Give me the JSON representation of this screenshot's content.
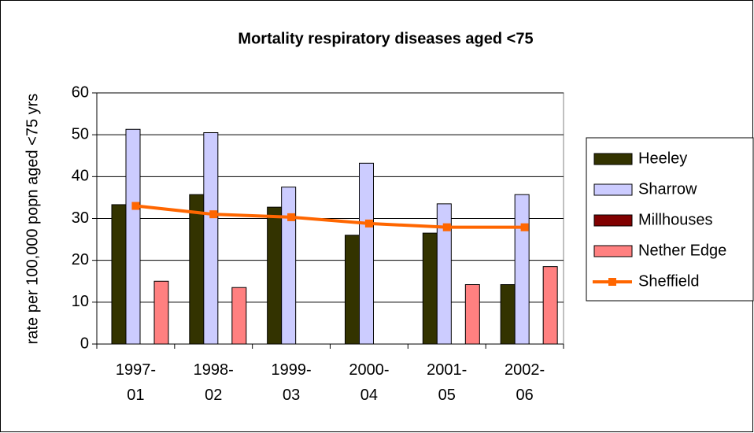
{
  "chart_data": {
    "type": "bar",
    "title": "Mortality respiratory diseases aged <75",
    "y_label": "rate per 100,000 popn aged <75 yrs",
    "categories": [
      "1997-01",
      "1998-02",
      "1999-03",
      "2000-04",
      "2001-05",
      "2002-06"
    ],
    "series": [
      {
        "name": "Heeley",
        "color": "#333300",
        "type": "bar",
        "values": [
          33.3,
          35.7,
          32.7,
          26,
          26.5,
          14.2
        ]
      },
      {
        "name": "Sharrow",
        "color": "#ccccff",
        "type": "bar",
        "values": [
          51.3,
          50.5,
          37.5,
          43.2,
          33.5,
          35.7
        ]
      },
      {
        "name": "Millhouses",
        "color": "#800000",
        "type": "bar",
        "values": [
          null,
          null,
          null,
          null,
          null,
          null
        ]
      },
      {
        "name": "Nether Edge",
        "color": "#ff8080",
        "type": "bar",
        "values": [
          15,
          13.5,
          null,
          null,
          14.2,
          18.5
        ]
      },
      {
        "name": "Sheffield",
        "color": "#ff6600",
        "type": "line",
        "values": [
          33,
          31,
          30.3,
          28.8,
          27.9,
          27.9
        ]
      }
    ],
    "ylim": [
      0,
      60
    ],
    "yticks": [
      0,
      10,
      20,
      30,
      40,
      50,
      60
    ],
    "grid": true,
    "legend": "right"
  }
}
